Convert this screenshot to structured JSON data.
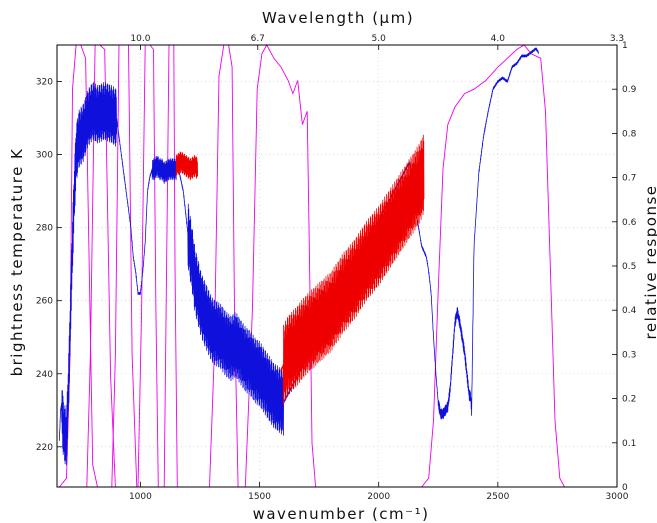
{
  "chart_data": {
    "type": "line",
    "xlabel": "wavenumber (cm⁻¹)",
    "ylabel": "brightness temperature K",
    "y2label": "relative response",
    "top_xlabel": "Wavelength (μm)",
    "xlim": [
      650,
      3000
    ],
    "ylim": [
      209,
      330
    ],
    "y2lim": [
      0,
      1
    ],
    "grid": true,
    "x_ticks": [
      {
        "v": 1000,
        "label": "1000"
      },
      {
        "v": 1500,
        "label": "1500"
      },
      {
        "v": 2000,
        "label": "2000"
      },
      {
        "v": 2500,
        "label": "2500"
      },
      {
        "v": 3000,
        "label": "3000"
      }
    ],
    "y_ticks": [
      {
        "v": 220,
        "label": "220"
      },
      {
        "v": 240,
        "label": "240"
      },
      {
        "v": 260,
        "label": "260"
      },
      {
        "v": 280,
        "label": "280"
      },
      {
        "v": 300,
        "label": "300"
      },
      {
        "v": 320,
        "label": "320"
      }
    ],
    "y2_ticks": [
      {
        "v": 0,
        "label": "0"
      },
      {
        "v": 0.1,
        "label": "0.1"
      },
      {
        "v": 0.2,
        "label": "0.2"
      },
      {
        "v": 0.3,
        "label": "0.3"
      },
      {
        "v": 0.4,
        "label": "0.4"
      },
      {
        "v": 0.5,
        "label": "0.5"
      },
      {
        "v": 0.6,
        "label": "0.6"
      },
      {
        "v": 0.7,
        "label": "0.7"
      },
      {
        "v": 0.8,
        "label": "0.8"
      },
      {
        "v": 0.9,
        "label": "0.9"
      },
      {
        "v": 1,
        "label": "1"
      }
    ],
    "top_ticks": [
      {
        "v": 1000,
        "label": "10.0"
      },
      {
        "v": 1492.5,
        "label": "6.7"
      },
      {
        "v": 2000,
        "label": "5.0"
      },
      {
        "v": 2500,
        "label": "4.0"
      },
      {
        "v": 3030,
        "label": "3.3"
      }
    ],
    "series": [
      {
        "color": "#1010dd",
        "noise": [
          {
            "from": 670,
            "to": 900,
            "amp": 8
          },
          {
            "from": 1050,
            "to": 1150,
            "amp": 3
          },
          {
            "from": 1200,
            "to": 1600,
            "amp": 9
          },
          {
            "from": 2250,
            "to": 2400,
            "amp": 1.5
          }
        ],
        "x": [
          660,
          665,
          670,
          675,
          680,
          690,
          700,
          710,
          720,
          730,
          740,
          750,
          760,
          780,
          800,
          820,
          850,
          880,
          900,
          920,
          940,
          960,
          970,
          980,
          990,
          1000,
          1010,
          1020,
          1030,
          1040,
          1050,
          1060,
          1070,
          1080,
          1090,
          1100,
          1120,
          1140,
          1160,
          1180,
          1200,
          1220,
          1230,
          1240,
          1250,
          1260,
          1280,
          1300,
          1320,
          1340,
          1360,
          1380,
          1400,
          1420,
          1440,
          1460,
          1480,
          1500,
          1520,
          1540,
          1560,
          1580,
          1600,
          2130,
          2160,
          2180,
          2200,
          2210,
          2220,
          2230,
          2240,
          2250,
          2260,
          2270,
          2280,
          2290,
          2300,
          2310,
          2320,
          2330,
          2340,
          2350,
          2360,
          2370,
          2380,
          2385,
          2390,
          2400,
          2420,
          2440,
          2460,
          2480,
          2500,
          2520,
          2540,
          2560,
          2580,
          2600,
          2620,
          2640,
          2660,
          2670
        ],
        "y": [
          222,
          230,
          232,
          226,
          224,
          222,
          240,
          265,
          285,
          300,
          304,
          305,
          306,
          310,
          312,
          311,
          312,
          311,
          310,
          300,
          290,
          280,
          272,
          268,
          262,
          262,
          268,
          276,
          290,
          294,
          296,
          296,
          297,
          296,
          296,
          295,
          296,
          296,
          296,
          290,
          278,
          270,
          265,
          263,
          260,
          258,
          255,
          252,
          251,
          250,
          248,
          247,
          248,
          246,
          244,
          243,
          241,
          240,
          238,
          236,
          234,
          233,
          232,
          298,
          283,
          275,
          272,
          268,
          262,
          250,
          240,
          232,
          229,
          229,
          230,
          231,
          236,
          245,
          254,
          257,
          254,
          250,
          246,
          240,
          234,
          234,
          230,
          275,
          295,
          305,
          312,
          318,
          320,
          321,
          320,
          324,
          325,
          327,
          327,
          328,
          329,
          328
        ]
      },
      {
        "color": "#ee0000",
        "noise": [
          {
            "from": 1600,
            "to": 2190,
            "amp": 11
          }
        ],
        "x": [
          1590,
          1620,
          1650,
          1700,
          1750,
          1800,
          1850,
          1900,
          1950,
          2000,
          2050,
          2100,
          2140,
          2170,
          2190
        ],
        "y": [
          241,
          245,
          247,
          251,
          254,
          257,
          262,
          266,
          271,
          275,
          280,
          285,
          289,
          292,
          295
        ]
      },
      {
        "color": "#ee0000",
        "noise": [
          {
            "from": 1150,
            "to": 1240,
            "amp": 3
          }
        ],
        "x": [
          1150,
          1170,
          1190,
          1210,
          1230,
          1240
        ],
        "y": [
          297,
          298,
          297,
          296,
          297,
          296
        ]
      }
    ],
    "response_series": [
      {
        "color": "#ee00ee",
        "x": [
          660,
          690,
          705,
          715,
          730,
          750,
          770,
          785,
          800,
          820,
          835
        ],
        "y": [
          0,
          0.02,
          0.3,
          0.9,
          1.0,
          1.0,
          0.97,
          0.5,
          0.05,
          0,
          0
        ]
      },
      {
        "color": "#ee00ee",
        "x": [
          775,
          790,
          810,
          830,
          850,
          875,
          895
        ],
        "y": [
          0,
          0.3,
          1.0,
          1.0,
          0.99,
          0.25,
          0
        ]
      },
      {
        "color": "#ee00ee",
        "x": [
          880,
          895,
          910,
          930,
          950,
          965,
          985
        ],
        "y": [
          0,
          0.3,
          1.0,
          1.0,
          1.0,
          0.3,
          0
        ]
      },
      {
        "color": "#ee00ee",
        "x": [
          990,
          1005,
          1020,
          1040,
          1055,
          1065,
          1075
        ],
        "y": [
          0,
          0.4,
          1.0,
          1.0,
          0.99,
          0.4,
          0
        ]
      },
      {
        "color": "#ee00ee",
        "x": [
          1100,
          1110,
          1120,
          1130,
          1140,
          1145,
          1155
        ],
        "y": [
          0,
          0.5,
          1.0,
          1.0,
          1.0,
          0.5,
          0
        ]
      },
      {
        "color": "#ee00ee",
        "x": [
          1290,
          1310,
          1330,
          1350,
          1370,
          1385,
          1395,
          1410
        ],
        "y": [
          0,
          0.3,
          0.93,
          1.0,
          1.0,
          0.95,
          0.4,
          0
        ]
      },
      {
        "color": "#ee00ee",
        "x": [
          1440,
          1470,
          1490,
          1510,
          1530,
          1560,
          1590,
          1620,
          1640,
          1660,
          1680,
          1700,
          1710,
          1720,
          1735
        ],
        "y": [
          0,
          0.4,
          0.9,
          0.98,
          1.0,
          0.97,
          0.95,
          0.92,
          0.89,
          0.92,
          0.82,
          0.85,
          0.5,
          0.1,
          0
        ]
      },
      {
        "color": "#ee00ee",
        "x": [
          2180,
          2210,
          2230,
          2250,
          2270,
          2290,
          2320,
          2360,
          2400,
          2450,
          2500,
          2540,
          2580,
          2610,
          2640,
          2680,
          2700,
          2720,
          2740,
          2760,
          2780
        ],
        "y": [
          0,
          0.02,
          0.15,
          0.45,
          0.72,
          0.82,
          0.86,
          0.89,
          0.9,
          0.92,
          0.95,
          0.97,
          0.99,
          1.0,
          0.98,
          0.97,
          0.85,
          0.5,
          0.15,
          0.02,
          0
        ]
      }
    ]
  }
}
